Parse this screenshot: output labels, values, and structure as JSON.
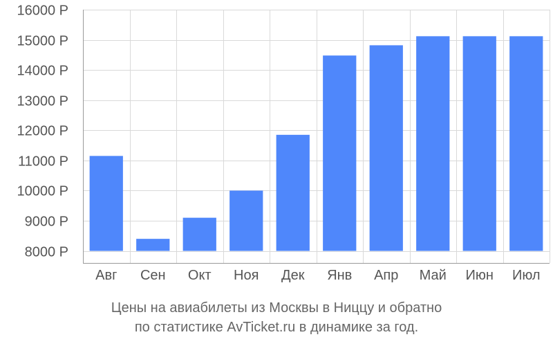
{
  "chart_data": {
    "type": "bar",
    "categories": [
      "Авг",
      "Сен",
      "Окт",
      "Ноя",
      "Дек",
      "Янв",
      "Апр",
      "Май",
      "Июн",
      "Июл"
    ],
    "values": [
      11150,
      8400,
      9100,
      10000,
      11850,
      14480,
      14820,
      15120,
      15120,
      15120
    ],
    "ylim": [
      7600,
      16000
    ],
    "yticks": [
      8000,
      9000,
      10000,
      11000,
      12000,
      13000,
      14000,
      15000,
      16000
    ],
    "ytick_labels": [
      "8000 Р",
      "9000 Р",
      "10000 Р",
      "11000 Р",
      "12000 Р",
      "13000 Р",
      "14000 Р",
      "15000 Р",
      "16000 Р"
    ],
    "grid": true,
    "bar_color": "#4f87fb",
    "title": "",
    "xlabel": "",
    "ylabel": ""
  },
  "caption": {
    "line1": "Цены на авиабилеты из Москвы в Ниццу и обратно",
    "line2": "по статистике AvTicket.ru в динамике за год."
  }
}
